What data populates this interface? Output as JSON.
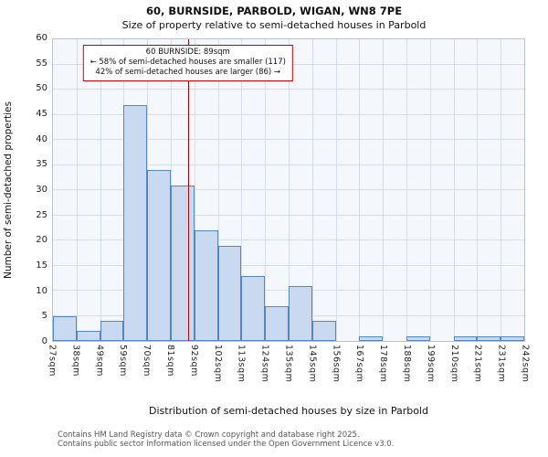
{
  "title": "60, BURNSIDE, PARBOLD, WIGAN, WN8 7PE",
  "subtitle": "Size of property relative to semi-detached houses in Parbold",
  "annotation": {
    "line1": "60 BURNSIDE: 89sqm",
    "line2": "← 58% of semi-detached houses are smaller (117)",
    "line3": "42% of semi-detached houses are larger (86) →"
  },
  "footer": {
    "line1": "Contains HM Land Registry data © Crown copyright and database right 2025.",
    "line2": "Contains public sector information licensed under the Open Government Licence v3.0."
  },
  "chart_data": {
    "type": "bar",
    "title": "60, BURNSIDE, PARBOLD, WIGAN, WN8 7PE — Size of property relative to semi-detached houses in Parbold",
    "xlabel": "Distribution of semi-detached houses by size in Parbold",
    "ylabel": "Number of semi-detached properties",
    "categories": [
      "27sqm",
      "38sqm",
      "49sqm",
      "59sqm",
      "70sqm",
      "81sqm",
      "92sqm",
      "102sqm",
      "113sqm",
      "124sqm",
      "135sqm",
      "145sqm",
      "156sqm",
      "167sqm",
      "178sqm",
      "188sqm",
      "199sqm",
      "210sqm",
      "221sqm",
      "231sqm",
      "242sqm"
    ],
    "values": [
      5,
      2,
      4,
      47,
      34,
      31,
      22,
      19,
      13,
      7,
      11,
      4,
      0,
      1,
      0,
      1,
      0,
      1,
      1,
      1
    ],
    "ylim": [
      0,
      60
    ],
    "ytick_step": 5,
    "grid": true,
    "legend": "none",
    "marker_value": 89,
    "marker_label": "60 BURNSIDE: 89sqm",
    "smaller_pct": 58,
    "smaller_count": 117,
    "larger_pct": 42,
    "larger_count": 86,
    "colors": {
      "bar_fill": "#c9d9f0",
      "bar_border": "#5585c2",
      "marker": "#bb0000",
      "grid": "#d5dde9",
      "plot_bg": "#f4f7fc"
    }
  }
}
